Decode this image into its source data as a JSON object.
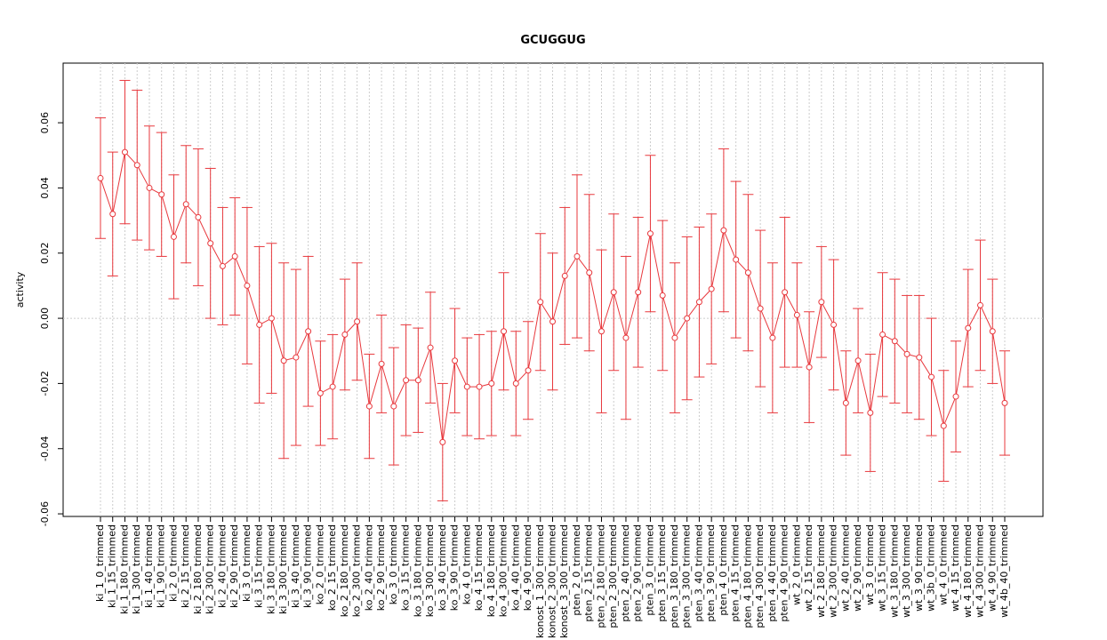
{
  "chart_data": {
    "type": "errorbar-line",
    "title": "GCUGGUG",
    "y_label": "activity",
    "color": "#e8383d",
    "grid": true,
    "categories": [
      "ki_1_0_trimmed",
      "ki_1_15_trimmed",
      "ki_1_180_trimmed",
      "ki_1_300_trimmed",
      "ki_1_40_trimmed",
      "ki_1_90_trimmed",
      "ki_2_0_trimmed",
      "ki_2_15_trimmed",
      "ki_2_180_trimmed",
      "ki_2_300_trimmed",
      "ki_2_40_trimmed",
      "ki_2_90_trimmed",
      "ki_3_0_trimmed",
      "ki_3_15_trimmed",
      "ki_3_180_trimmed",
      "ki_3_300_trimmed",
      "ki_3_40_trimmed",
      "ki_3_90_trimmed",
      "ko_2_0_trimmed",
      "ko_2_15_trimmed",
      "ko_2_180_trimmed",
      "ko_2_300_trimmed",
      "ko_2_40_trimmed",
      "ko_2_90_trimmed",
      "ko_3_0_trimmed",
      "ko_3_15_trimmed",
      "ko_3_180_trimmed",
      "ko_3_300_trimmed",
      "ko_3_40_trimmed",
      "ko_3_90_trimmed",
      "ko_4_0_trimmed",
      "ko_4_15_trimmed",
      "ko_4_180_trimmed",
      "ko_4_300_trimmed",
      "ko_4_40_trimmed",
      "ko_4_90_trimmed",
      "konost_1_300_trimmed",
      "konost_2_300_trimmed",
      "konost_3_300_trimmed",
      "pten_2_0_trimmed",
      "pten_2_15_trimmed",
      "pten_2_180_trimmed",
      "pten_2_300_trimmed",
      "pten_2_40_trimmed",
      "pten_2_90_trimmed",
      "pten_3_0_trimmed",
      "pten_3_15_trimmed",
      "pten_3_180_trimmed",
      "pten_3_300_trimmed",
      "pten_3_40_trimmed",
      "pten_3_90_trimmed",
      "pten_4_0_trimmed",
      "pten_4_15_trimmed",
      "pten_4_180_trimmed",
      "pten_4_300_trimmed",
      "pten_4_40_trimmed",
      "pten_4_90_trimmed",
      "wt_2_0_trimmed",
      "wt_2_15_trimmed",
      "wt_2_180_trimmed",
      "wt_2_300_trimmed",
      "wt_2_40_trimmed",
      "wt_2_90_trimmed",
      "wt_3_0_trimmed",
      "wt_3_15_trimmed",
      "wt_3_180_trimmed",
      "wt_3_300_trimmed",
      "wt_3_90_trimmed",
      "wt_3b_0_trimmed",
      "wt_4_0_trimmed",
      "wt_4_15_trimmed",
      "wt_4_180_trimmed",
      "wt_4_300_trimmed",
      "wt_4_90_trimmed",
      "wt_4b_40_trimmed"
    ],
    "values": [
      0.043,
      0.032,
      0.051,
      0.047,
      0.04,
      0.038,
      0.025,
      0.035,
      0.031,
      0.023,
      0.016,
      0.019,
      0.01,
      -0.002,
      0.0,
      -0.013,
      -0.012,
      -0.004,
      -0.023,
      -0.021,
      -0.005,
      -0.001,
      -0.027,
      -0.014,
      -0.027,
      -0.019,
      -0.019,
      -0.009,
      -0.038,
      -0.013,
      -0.021,
      -0.021,
      -0.02,
      -0.004,
      -0.02,
      -0.016,
      0.005,
      -0.001,
      0.013,
      0.019,
      0.014,
      -0.004,
      0.008,
      -0.006,
      0.008,
      0.026,
      0.007,
      -0.006,
      0.0,
      0.005,
      0.009,
      0.027,
      0.018,
      0.014,
      0.003,
      -0.006,
      0.008,
      0.001,
      -0.015,
      0.005,
      -0.002,
      -0.026,
      -0.013,
      -0.029,
      -0.005,
      -0.007,
      -0.011,
      -0.012,
      -0.018,
      -0.033,
      -0.024,
      -0.003,
      0.004,
      -0.004,
      -0.026
    ],
    "errors": [
      0.0185,
      0.019,
      0.022,
      0.023,
      0.019,
      0.019,
      0.019,
      0.018,
      0.021,
      0.023,
      0.018,
      0.018,
      0.024,
      0.024,
      0.023,
      0.03,
      0.027,
      0.023,
      0.016,
      0.016,
      0.017,
      0.018,
      0.016,
      0.015,
      0.018,
      0.017,
      0.016,
      0.017,
      0.018,
      0.016,
      0.015,
      0.016,
      0.016,
      0.018,
      0.016,
      0.015,
      0.021,
      0.021,
      0.021,
      0.025,
      0.024,
      0.025,
      0.024,
      0.025,
      0.023,
      0.024,
      0.023,
      0.023,
      0.025,
      0.023,
      0.023,
      0.025,
      0.024,
      0.024,
      0.024,
      0.023,
      0.023,
      0.016,
      0.017,
      0.017,
      0.02,
      0.016,
      0.016,
      0.018,
      0.019,
      0.019,
      0.018,
      0.019,
      0.018,
      0.017,
      0.017,
      0.018,
      0.02,
      0.016,
      0.016
    ],
    "ylim": [
      -0.0608,
      0.0783
    ],
    "yticks": [
      -0.06,
      -0.04,
      -0.02,
      {
        "value": 0,
        "label": "0.00"
      },
      0.02,
      0.04,
      0.06
    ]
  }
}
